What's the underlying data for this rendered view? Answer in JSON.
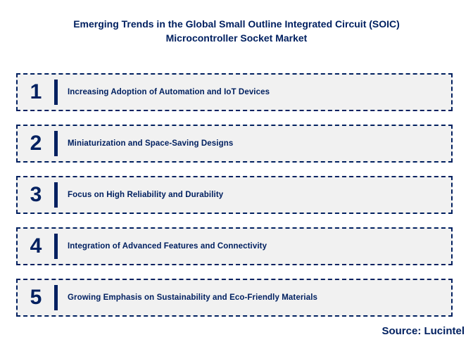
{
  "title": {
    "line1": "Emerging Trends in the Global Small Outline Integrated Circuit (SOIC)",
    "line2": "Microcontroller Socket Market"
  },
  "trends": [
    {
      "number": "1",
      "label": "Increasing Adoption of Automation and IoT Devices"
    },
    {
      "number": "2",
      "label": "Miniaturization and Space-Saving Designs"
    },
    {
      "number": "3",
      "label": "Focus on High Reliability and Durability"
    },
    {
      "number": "4",
      "label": "Integration of Advanced Features and Connectivity"
    },
    {
      "number": "5",
      "label": "Growing Emphasis on Sustainability and Eco-Friendly Materials"
    }
  ],
  "source": "Source: Lucintel",
  "colors": {
    "accent": "#002060",
    "box_background": "#f1f1f1",
    "page_background": "#ffffff"
  }
}
